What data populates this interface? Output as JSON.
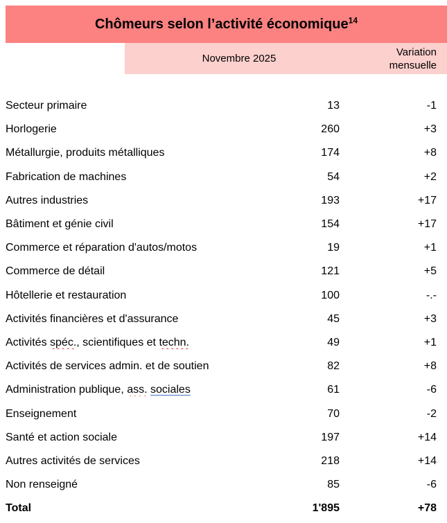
{
  "header": {
    "title": "Chômeurs selon l’activité économique",
    "superscript": "14",
    "period": "Novembre 2025",
    "variation_line1": "Variation",
    "variation_line2": "mensuelle"
  },
  "colors": {
    "title_band": "#FC8181",
    "subheader_band": "#FCD0CD",
    "spellcheck_underline": "#E53935",
    "grammar_underline": "#4472C4"
  },
  "table": {
    "rows": [
      {
        "label_parts": [
          {
            "text": "Secteur primaire"
          }
        ],
        "value": "13",
        "variation": "-1"
      },
      {
        "label_parts": [
          {
            "text": "Horlogerie"
          }
        ],
        "value": "260",
        "variation": "+3"
      },
      {
        "label_parts": [
          {
            "text": "Métallurgie, produits métalliques"
          }
        ],
        "value": "174",
        "variation": "+8"
      },
      {
        "label_parts": [
          {
            "text": "Fabrication de machines"
          }
        ],
        "value": "54",
        "variation": "+2"
      },
      {
        "label_parts": [
          {
            "text": "Autres industries"
          }
        ],
        "value": "193",
        "variation": "+17"
      },
      {
        "label_parts": [
          {
            "text": "Bâtiment et génie civil"
          }
        ],
        "value": "154",
        "variation": "+17"
      },
      {
        "label_parts": [
          {
            "text": "Commerce et réparation d'autos/motos"
          }
        ],
        "value": "19",
        "variation": "+1"
      },
      {
        "label_parts": [
          {
            "text": "Commerce de détail"
          }
        ],
        "value": "121",
        "variation": "+5"
      },
      {
        "label_parts": [
          {
            "text": "Hôtellerie et restauration"
          }
        ],
        "value": "100",
        "variation": "-.-"
      },
      {
        "label_parts": [
          {
            "text": "Activités financières et d'assurance"
          }
        ],
        "value": "45",
        "variation": "+3"
      },
      {
        "label_parts": [
          {
            "text": "Activités "
          },
          {
            "text": "spéc.",
            "mark": "spelling"
          },
          {
            "text": ", scientifiques et "
          },
          {
            "text": "techn.",
            "mark": "spelling"
          }
        ],
        "value": "49",
        "variation": "+1"
      },
      {
        "label_parts": [
          {
            "text": "Activités de services admin. et de soutien"
          }
        ],
        "value": "82",
        "variation": "+8"
      },
      {
        "label_parts": [
          {
            "text": "Administration publique, "
          },
          {
            "text": "ass.",
            "mark": "spelling"
          },
          {
            "text": " "
          },
          {
            "text": "sociales",
            "mark": "grammar"
          }
        ],
        "value": "61",
        "variation": "-6"
      },
      {
        "label_parts": [
          {
            "text": "Enseignement"
          }
        ],
        "value": "70",
        "variation": "-2"
      },
      {
        "label_parts": [
          {
            "text": "Santé et action sociale"
          }
        ],
        "value": "197",
        "variation": "+14"
      },
      {
        "label_parts": [
          {
            "text": "Autres activités de services"
          }
        ],
        "value": "218",
        "variation": "+14"
      },
      {
        "label_parts": [
          {
            "text": "Non renseigné"
          }
        ],
        "value": "85",
        "variation": "-6"
      },
      {
        "label_parts": [
          {
            "text": "Total"
          }
        ],
        "value": "1'895",
        "variation": "+78",
        "bold": true
      }
    ]
  }
}
